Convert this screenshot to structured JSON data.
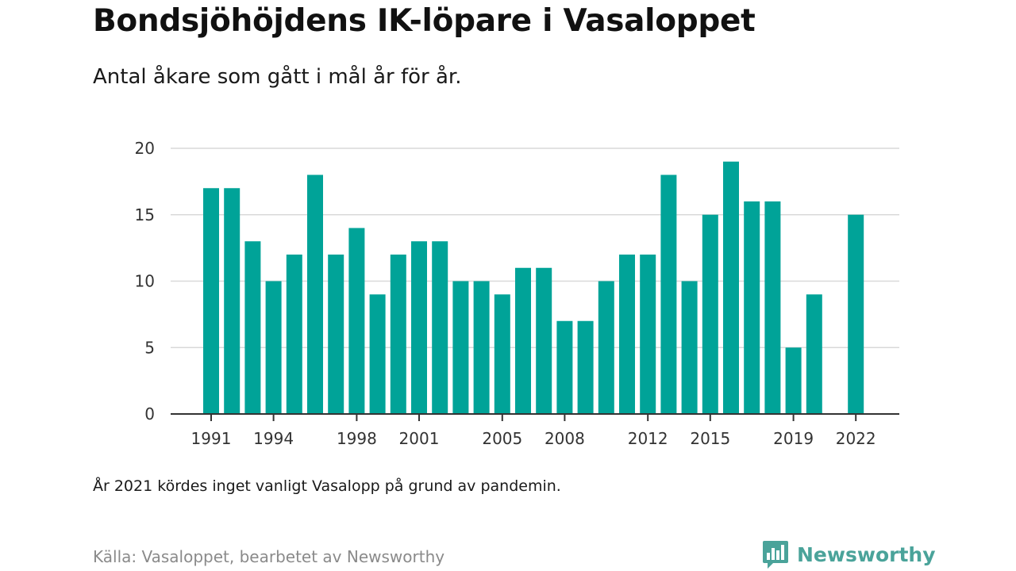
{
  "header": {
    "title": "Bondsjöhöjdens IK-löpare i Vasaloppet",
    "subtitle": "Antal åkare som gått i mål år för år."
  },
  "footer": {
    "note": "År 2021 kördes inget vanligt Vasalopp på grund av pandemin.",
    "source": "Källa: Vasaloppet, bearbetet av Newsworthy",
    "brand": "Newsworthy",
    "brand_icon": "bar-chart-speech-bubble-icon"
  },
  "colors": {
    "bar": "#00a398",
    "grid": "#d9d9d9",
    "axis": "#333333",
    "brand": "#4aa39a"
  },
  "chart_data": {
    "type": "bar",
    "x": [
      1991,
      1992,
      1993,
      1994,
      1995,
      1996,
      1997,
      1998,
      1999,
      2000,
      2001,
      2002,
      2003,
      2004,
      2005,
      2006,
      2007,
      2008,
      2009,
      2010,
      2011,
      2012,
      2013,
      2014,
      2015,
      2016,
      2017,
      2018,
      2019,
      2020,
      2021,
      2022
    ],
    "values": [
      17,
      17,
      13,
      10,
      12,
      18,
      12,
      14,
      9,
      12,
      13,
      13,
      10,
      10,
      9,
      11,
      11,
      7,
      7,
      10,
      12,
      12,
      18,
      10,
      15,
      19,
      16,
      16,
      5,
      9,
      null,
      15
    ],
    "x_tick_labels": [
      "1991",
      "1994",
      "1998",
      "2001",
      "2005",
      "2008",
      "2012",
      "2015",
      "2019",
      "2022"
    ],
    "y_ticks": [
      "0",
      "5",
      "10",
      "15",
      "20"
    ],
    "ylim": [
      0,
      20
    ],
    "grid": true
  }
}
